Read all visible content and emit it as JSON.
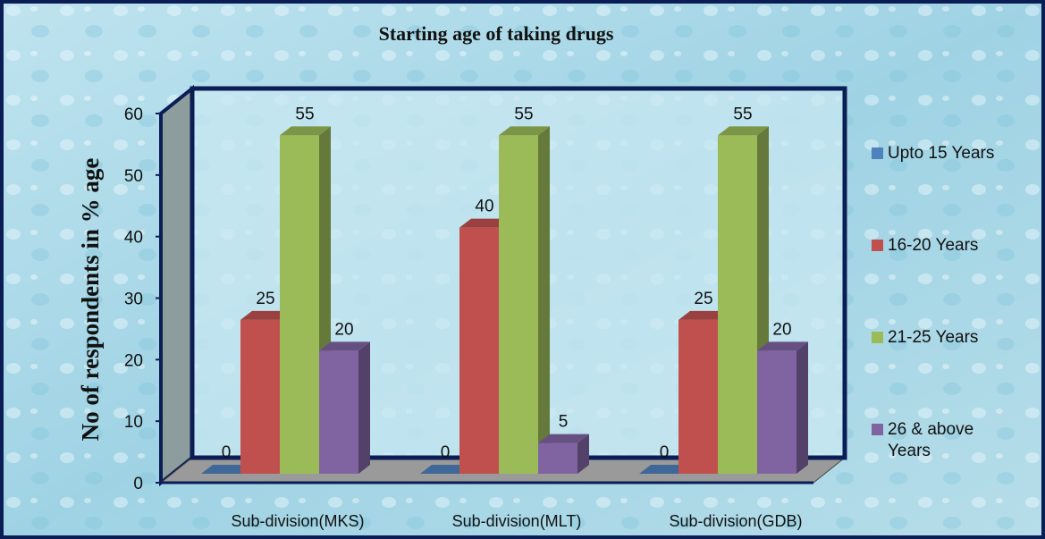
{
  "chart_data": {
    "type": "bar",
    "title": "Starting age of taking drugs",
    "y_label": "No of respondents in % age",
    "categories": [
      "Sub-division(MKS)",
      "Sub-division(MLT)",
      "Sub-division(GDB)"
    ],
    "series": [
      {
        "name": "Upto 15 Years",
        "color": "#4f81bd",
        "values": [
          0,
          0,
          0
        ]
      },
      {
        "name": "16-20 Years",
        "color": "#c0504d",
        "values": [
          25,
          40,
          25
        ]
      },
      {
        "name": "21-25 Years",
        "color": "#9bbb59",
        "values": [
          55,
          55,
          55
        ]
      },
      {
        "name": "26 & above Years",
        "color": "#8064a2",
        "values": [
          20,
          5,
          20
        ]
      }
    ],
    "ylim": [
      0,
      60
    ],
    "yticks": [
      0,
      10,
      20,
      30,
      40,
      50,
      60
    ],
    "legend": "right"
  }
}
